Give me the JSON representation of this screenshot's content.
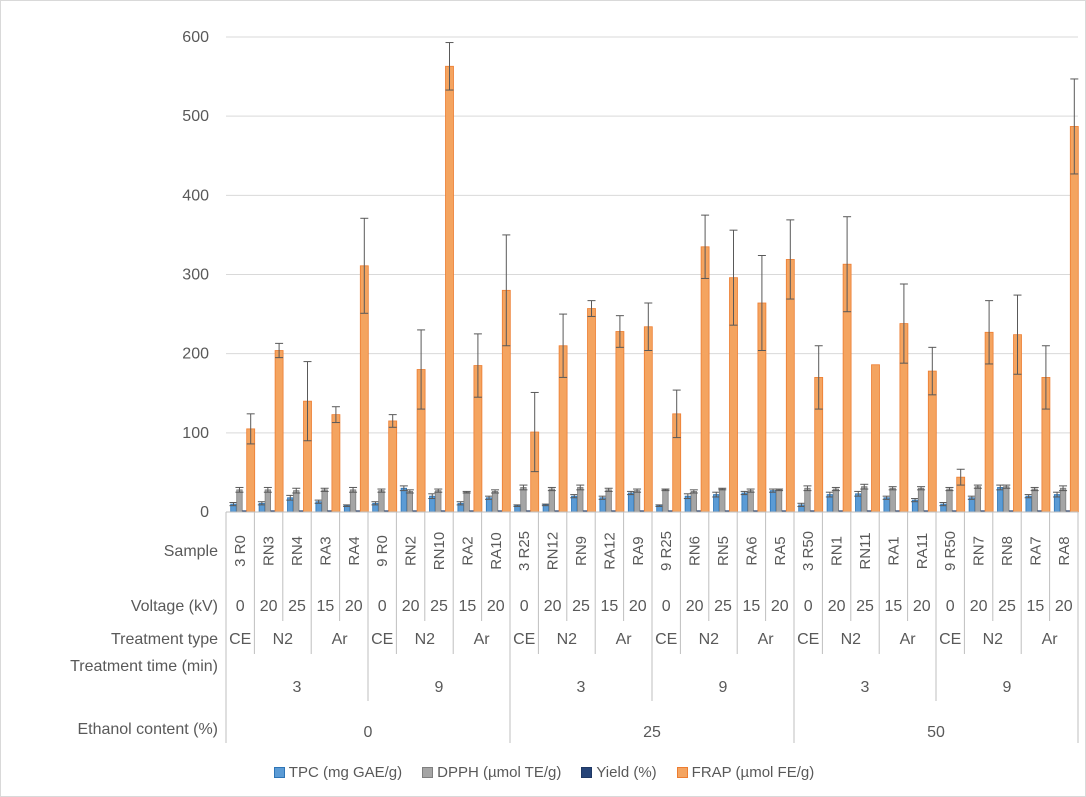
{
  "chart_data": {
    "type": "bar",
    "ylim": [
      0,
      600
    ],
    "yticks": [
      0,
      100,
      200,
      300,
      400,
      500,
      600
    ],
    "grid": true,
    "legend_position": "bottom",
    "row_headers": [
      "Sample",
      "Voltage (kV)",
      "Treatment type",
      "Treatment time (min)",
      "Ethanol content (%)"
    ],
    "samples": [
      "3 R0",
      "RN3",
      "RN4",
      "RA3",
      "RA4",
      "9 R0",
      "RN2",
      "RN10",
      "RA2",
      "RA10",
      "3 R25",
      "RN12",
      "RN9",
      "RA12",
      "RA9",
      "9 R25",
      "RN6",
      "RN5",
      "RA6",
      "RA5",
      "3 R50",
      "RN1",
      "RN11",
      "RA1",
      "RA11",
      "9 R50",
      "RN7",
      "RN8",
      "RA7",
      "RA8"
    ],
    "voltage": [
      "0",
      "20",
      "25",
      "15",
      "20",
      "0",
      "20",
      "25",
      "15",
      "20",
      "0",
      "20",
      "25",
      "15",
      "20",
      "0",
      "20",
      "25",
      "15",
      "20",
      "0",
      "20",
      "25",
      "15",
      "20",
      "0",
      "20",
      "25",
      "15",
      "20"
    ],
    "treatment_type": [
      {
        "label": "CE",
        "span": 1
      },
      {
        "label": "N2",
        "span": 2
      },
      {
        "label": "Ar",
        "span": 2
      },
      {
        "label": "CE",
        "span": 1
      },
      {
        "label": "N2",
        "span": 2
      },
      {
        "label": "Ar",
        "span": 2
      },
      {
        "label": "CE",
        "span": 1
      },
      {
        "label": "N2",
        "span": 2
      },
      {
        "label": "Ar",
        "span": 2
      },
      {
        "label": "CE",
        "span": 1
      },
      {
        "label": "N2",
        "span": 2
      },
      {
        "label": "Ar",
        "span": 2
      },
      {
        "label": "CE",
        "span": 1
      },
      {
        "label": "N2",
        "span": 2
      },
      {
        "label": "Ar",
        "span": 2
      },
      {
        "label": "CE",
        "span": 1
      },
      {
        "label": "N2",
        "span": 2
      },
      {
        "label": "Ar",
        "span": 2
      }
    ],
    "treatment_time": [
      {
        "label": "3",
        "span": 5
      },
      {
        "label": "9",
        "span": 5
      },
      {
        "label": "3",
        "span": 5
      },
      {
        "label": "9",
        "span": 5
      },
      {
        "label": "3",
        "span": 5
      },
      {
        "label": "9",
        "span": 5
      }
    ],
    "ethanol_content": [
      {
        "label": "0",
        "span": 10
      },
      {
        "label": "25",
        "span": 10
      },
      {
        "label": "50",
        "span": 10
      }
    ],
    "series": [
      {
        "name": "TPC (mg GAE/g)",
        "color": "#5b9bd5",
        "values": [
          10,
          11,
          18,
          13,
          8,
          11,
          30,
          20,
          11,
          18,
          8,
          9,
          20,
          18,
          24,
          8,
          20,
          22,
          24,
          27,
          9,
          22,
          23,
          18,
          15,
          10,
          18,
          31,
          20,
          22
        ],
        "errors": [
          2,
          2,
          3,
          2,
          1,
          2,
          3,
          3,
          2,
          2,
          1,
          1,
          2,
          2,
          2,
          1,
          3,
          3,
          2,
          2,
          2,
          3,
          3,
          2,
          2,
          2,
          2,
          3,
          2,
          3
        ]
      },
      {
        "name": "DPPH (µmol TE/g)",
        "color": "#a5a5a5",
        "values": [
          28,
          28,
          27,
          28,
          28,
          27,
          26,
          27,
          25,
          26,
          31,
          29,
          31,
          28,
          27,
          28,
          26,
          29,
          27,
          28,
          30,
          29,
          32,
          30,
          30,
          29,
          32,
          32,
          29,
          30
        ],
        "errors": [
          3,
          3,
          3,
          2,
          3,
          2,
          2,
          2,
          1,
          2,
          3,
          2,
          3,
          2,
          2,
          1,
          2,
          1,
          2,
          1,
          3,
          2,
          3,
          2,
          2,
          2,
          2,
          2,
          2,
          3
        ]
      },
      {
        "name": "Yield (%)",
        "color": "#264478",
        "values": [
          1.5,
          1.5,
          1.5,
          1.5,
          1.5,
          1.5,
          1.5,
          1.5,
          1.5,
          1.5,
          1.5,
          1.5,
          1.5,
          1.5,
          1.5,
          1.5,
          1.5,
          1.5,
          1.5,
          1.5,
          1.5,
          1.5,
          1.5,
          1.5,
          1.5,
          1.5,
          1.5,
          1.5,
          1.5,
          1.5
        ],
        "errors": [
          0,
          0,
          0,
          0,
          0,
          0,
          0,
          0,
          0,
          0,
          0,
          0,
          0,
          0,
          0,
          0,
          0,
          0,
          0,
          0,
          0,
          0,
          0,
          0,
          0,
          0,
          0,
          0,
          0,
          0
        ]
      },
      {
        "name": "FRAP (µmol FE/g)",
        "color": "#f4a460",
        "values": [
          105,
          204,
          140,
          123,
          311,
          115,
          180,
          563,
          185,
          280,
          101,
          210,
          257,
          228,
          234,
          124,
          335,
          296,
          264,
          319,
          170,
          313,
          186,
          238,
          178,
          44,
          227,
          224,
          170,
          487
        ],
        "errors": [
          19,
          9,
          50,
          10,
          60,
          8,
          50,
          30,
          40,
          70,
          50,
          40,
          10,
          20,
          30,
          30,
          40,
          60,
          60,
          50,
          40,
          60,
          0,
          50,
          30,
          10,
          40,
          50,
          40,
          60
        ]
      }
    ]
  }
}
